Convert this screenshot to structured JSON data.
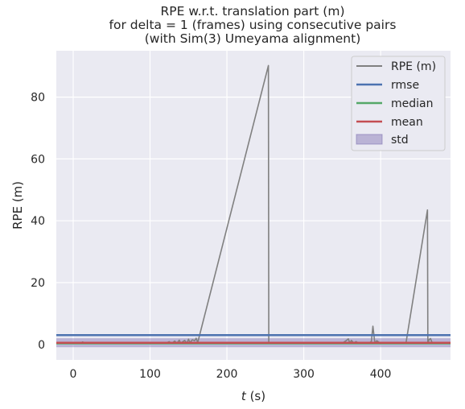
{
  "chart_data": {
    "type": "line",
    "title": [
      "RPE w.r.t. translation part (m)",
      "for delta = 1 (frames) using consecutive pairs",
      "(with Sim(3) Umeyama alignment)"
    ],
    "xlabel_var": "t",
    "xlabel_unit": " (s)",
    "ylabel": "RPE (m)",
    "xlim": [
      -22,
      491
    ],
    "ylim": [
      -5,
      95
    ],
    "xticks": [
      0,
      100,
      200,
      300,
      400
    ],
    "yticks": [
      0,
      20,
      40,
      60,
      80
    ],
    "grid": true,
    "legend_position": "top-right",
    "series": [
      {
        "name": "RPE (m)",
        "color": "#808080",
        "x": [
          -22,
          0,
          10,
          12,
          20,
          40,
          60,
          80,
          100,
          110,
          120,
          125,
          128,
          132,
          135,
          138,
          140,
          142,
          145,
          148,
          150,
          152,
          155,
          158,
          160,
          162,
          254,
          254.5,
          256,
          270,
          290,
          300,
          310,
          320,
          330,
          340,
          350,
          355,
          358,
          360,
          362,
          365,
          368,
          372,
          378,
          385,
          388,
          390,
          392,
          393,
          395,
          400,
          410,
          420,
          430,
          433,
          461,
          461.5,
          463,
          465,
          467,
          470,
          480,
          491
        ],
        "y": [
          0.3,
          0.3,
          0.3,
          0.8,
          0.3,
          0.3,
          0.3,
          0.3,
          0.3,
          0.3,
          0.4,
          0.9,
          0.3,
          1.1,
          0.4,
          1.4,
          0.3,
          0.8,
          1.3,
          0.4,
          1.7,
          0.6,
          1.5,
          1.2,
          2.0,
          0.6,
          90.2,
          0.4,
          0.3,
          0.3,
          0.3,
          0.3,
          0.4,
          0.3,
          0.3,
          0.3,
          0.4,
          1.2,
          1.8,
          0.4,
          1.3,
          0.5,
          0.9,
          0.4,
          0.3,
          0.4,
          1.0,
          5.9,
          1.5,
          0.4,
          1.2,
          0.3,
          0.3,
          0.3,
          0.3,
          0.4,
          43.5,
          0.4,
          1.5,
          1.9,
          0.6,
          0.3,
          0.3,
          0.3
        ]
      }
    ],
    "stats": {
      "rmse": {
        "name": "rmse",
        "value": 3.0,
        "color": "#4c72b0"
      },
      "median": {
        "name": "median",
        "value": 0.35,
        "color": "#55a868"
      },
      "mean": {
        "name": "mean",
        "value": 0.55,
        "color": "#c44e52"
      },
      "std": {
        "name": "std",
        "lower": -0.9,
        "upper": 2.0,
        "color": "#8172b2"
      }
    }
  }
}
